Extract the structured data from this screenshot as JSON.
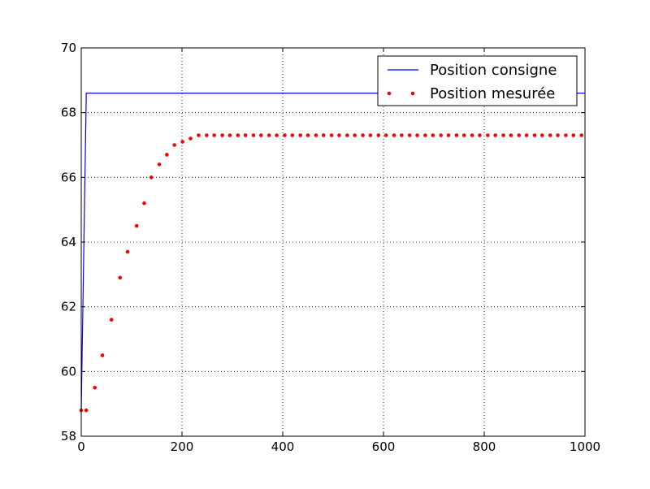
{
  "chart_data": {
    "type": "line",
    "title": "",
    "xlabel": "",
    "ylabel": "",
    "xlim": [
      0,
      1000
    ],
    "ylim": [
      58,
      70
    ],
    "xticks": [
      0,
      200,
      400,
      600,
      800,
      1000
    ],
    "yticks": [
      58,
      60,
      62,
      64,
      66,
      68,
      70
    ],
    "grid": true,
    "legend_position": "top-right",
    "series": [
      {
        "name": "Position consigne",
        "style": "line",
        "color": "#0000ff",
        "x": [
          0,
          10,
          1000
        ],
        "y": [
          58.8,
          68.6,
          68.6
        ]
      },
      {
        "name": "Position mesurée",
        "style": "markers",
        "color": "#ff0000",
        "x": [
          0,
          10,
          27,
          42,
          60,
          77,
          92,
          110,
          125,
          139,
          155,
          170,
          185,
          201,
          217,
          233,
          249,
          264,
          280,
          295,
          311,
          326,
          342,
          357,
          373,
          388,
          404,
          419,
          435,
          450,
          466,
          481,
          497,
          512,
          528,
          543,
          559,
          574,
          590,
          605,
          621,
          636,
          652,
          667,
          683,
          698,
          714,
          729,
          745,
          760,
          776,
          791,
          807,
          822,
          838,
          853,
          869,
          884,
          900,
          915,
          931,
          946,
          962,
          977,
          993
        ],
        "y": [
          58.8,
          58.8,
          59.5,
          60.5,
          61.6,
          62.9,
          63.7,
          64.5,
          65.2,
          66.0,
          66.4,
          66.7,
          67.0,
          67.1,
          67.2,
          67.3,
          67.3,
          67.3,
          67.3,
          67.3,
          67.3,
          67.3,
          67.3,
          67.3,
          67.3,
          67.3,
          67.3,
          67.3,
          67.3,
          67.3,
          67.3,
          67.3,
          67.3,
          67.3,
          67.3,
          67.3,
          67.3,
          67.3,
          67.3,
          67.3,
          67.3,
          67.3,
          67.3,
          67.3,
          67.3,
          67.3,
          67.3,
          67.3,
          67.3,
          67.3,
          67.3,
          67.3,
          67.3,
          67.3,
          67.3,
          67.3,
          67.3,
          67.3,
          67.3,
          67.3,
          67.3,
          67.3,
          67.3,
          67.3,
          67.3
        ]
      }
    ]
  }
}
